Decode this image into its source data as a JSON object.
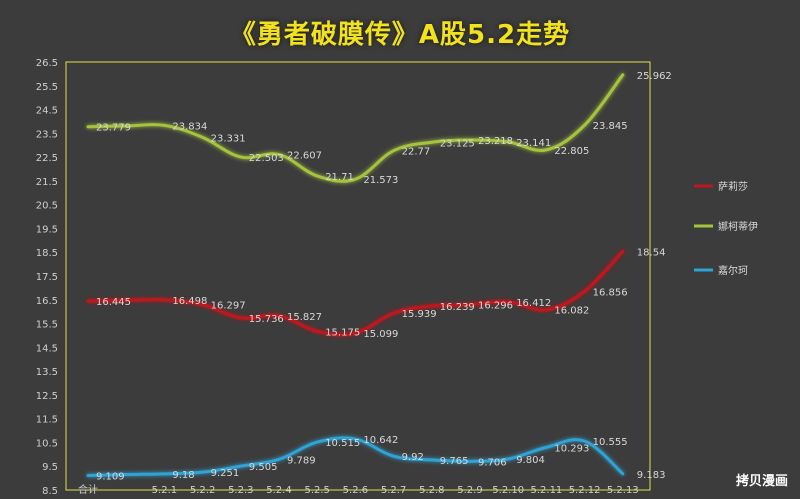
{
  "title": "《勇者破膜传》A股5.2走势",
  "watermark": "拷贝漫画",
  "colors": {
    "background": "#3c3c3c",
    "title": "#f2e21b",
    "frame": "#e2e24a",
    "axis_text": "#cfcfcf",
    "label_text": "#d8d8d8"
  },
  "chart_data": {
    "type": "line",
    "title": "《勇者破膜传》A股5.2走势",
    "categories": [
      "合计",
      "",
      "5.2.1",
      "5.2.2",
      "5.2.3",
      "5.2.4",
      "5.2.5",
      "5.2.6",
      "5.2.7",
      "5.2.8",
      "5.2.9",
      "5.2.10",
      "5.2.11",
      "5.2.12",
      "5.2.13"
    ],
    "ylim": [
      8.5,
      26.5
    ],
    "ystep": 1,
    "grid": false,
    "legend_position": "right",
    "series": [
      {
        "name": "萨莉莎",
        "color": "#c0161c",
        "values": [
          16.445,
          16.48,
          16.498,
          16.297,
          15.736,
          15.827,
          15.175,
          15.099,
          15.939,
          16.239,
          16.296,
          16.412,
          16.082,
          16.856,
          18.54
        ],
        "labels": [
          "16.445",
          "",
          "16.498",
          "16.297",
          "15.736",
          "15.827",
          "15.175",
          "15.099",
          "15.939",
          "16.239",
          "16.296",
          "16.412",
          "16.082",
          "16.856",
          "18.54"
        ]
      },
      {
        "name": "娜柯蒂伊",
        "color": "#a6c33d",
        "values": [
          23.779,
          23.81,
          23.834,
          23.331,
          22.503,
          22.607,
          21.71,
          21.573,
          22.77,
          23.125,
          23.218,
          23.141,
          22.805,
          23.845,
          25.962
        ],
        "labels": [
          "23.779",
          "",
          "23.834",
          "23.331",
          "22.503",
          "22.607",
          "21.71",
          "21.573",
          "22.77",
          "23.125",
          "23.218",
          "23.141",
          "22.805",
          "23.845",
          "25.962"
        ]
      },
      {
        "name": "嘉尔珂",
        "color": "#2ea3d4",
        "values": [
          9.109,
          9.15,
          9.18,
          9.251,
          9.505,
          9.789,
          10.515,
          10.642,
          9.92,
          9.765,
          9.706,
          9.804,
          10.293,
          10.555,
          9.183
        ],
        "labels": [
          "9.109",
          "",
          "9.18",
          "9.251",
          "9.505",
          "9.789",
          "10.515",
          "10.642",
          "9.92",
          "9.765",
          "9.706",
          "9.804",
          "10.293",
          "10.555",
          "9.183"
        ]
      }
    ]
  }
}
